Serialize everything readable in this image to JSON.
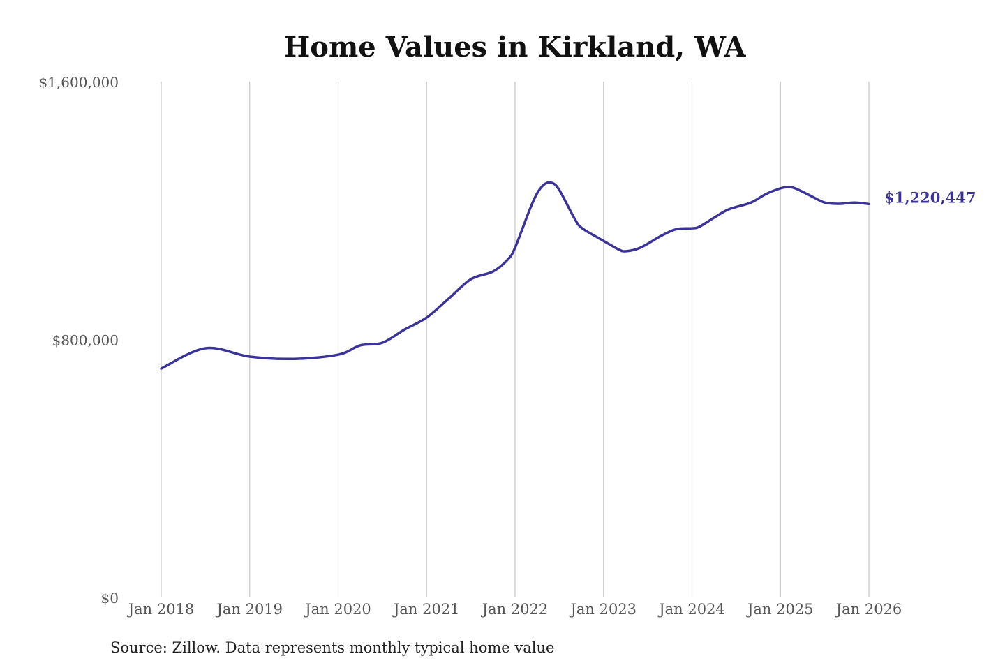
{
  "chart_data": {
    "type": "line",
    "title": "Home Values in Kirkland, WA",
    "source": "Source: Zillow. Data represents monthly typical home value",
    "xlabel": "",
    "ylabel": "",
    "ylim": [
      0,
      1600000
    ],
    "y_ticks": [
      0,
      800000,
      1600000
    ],
    "y_tick_labels": [
      "$0",
      "$800,000",
      "$1,600,000"
    ],
    "x_ticks": [
      "2018-01",
      "2019-01",
      "2020-01",
      "2021-01",
      "2022-01",
      "2023-01",
      "2024-01",
      "2025-01",
      "2026-01"
    ],
    "x_tick_labels": [
      "Jan 2018",
      "Jan 2019",
      "Jan 2020",
      "Jan 2021",
      "Jan 2022",
      "Jan 2023",
      "Jan 2024",
      "Jan 2025",
      "Jan 2026"
    ],
    "grid": "vertical",
    "line_color": "#3b3399",
    "end_label": "$1,220,447",
    "series": [
      {
        "x": [
          "2018-01",
          "2018-07",
          "2019-01",
          "2019-07",
          "2020-01",
          "2020-04",
          "2020-07",
          "2020-10",
          "2021-01",
          "2021-04",
          "2021-07",
          "2021-10",
          "2021-12",
          "2022-01",
          "2022-03",
          "2022-04",
          "2022-05",
          "2022-06",
          "2022-07",
          "2022-09",
          "2022-10",
          "2022-12",
          "2023-01",
          "2023-03",
          "2023-04",
          "2023-06",
          "2023-09",
          "2023-11",
          "2024-01",
          "2024-02",
          "2024-04",
          "2024-06",
          "2024-09",
          "2024-11",
          "2025-01",
          "2025-02",
          "2025-03",
          "2025-05",
          "2025-07",
          "2025-09",
          "2025-11",
          "2026-01"
        ],
        "values": [
          710000,
          773000,
          747000,
          740000,
          753000,
          782000,
          790000,
          831000,
          868000,
          927000,
          987000,
          1011000,
          1048000,
          1085000,
          1204000,
          1254000,
          1282000,
          1286000,
          1264000,
          1178000,
          1147000,
          1119000,
          1106000,
          1080000,
          1074000,
          1085000,
          1124000,
          1143000,
          1145000,
          1150000,
          1178000,
          1204000,
          1225000,
          1251000,
          1269000,
          1273000,
          1269000,
          1247000,
          1225000,
          1221000,
          1225000,
          1220447
        ]
      }
    ]
  }
}
